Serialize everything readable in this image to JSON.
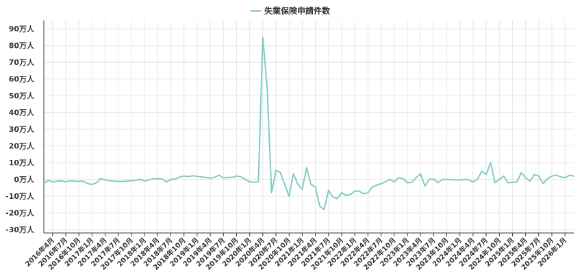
{
  "chart_data": {
    "type": "line",
    "title": "",
    "xlabel": "",
    "ylabel": "",
    "legend_position": "top-center",
    "grid": true,
    "ylim": [
      -32,
      95
    ],
    "y_ticks": [
      {
        "value": 90,
        "label": "90万人"
      },
      {
        "value": 80,
        "label": "80万人"
      },
      {
        "value": 70,
        "label": "70万人"
      },
      {
        "value": 60,
        "label": "60万人"
      },
      {
        "value": 50,
        "label": "50万人"
      },
      {
        "value": 40,
        "label": "40万人"
      },
      {
        "value": 30,
        "label": "30万人"
      },
      {
        "value": 20,
        "label": "20万人"
      },
      {
        "value": 10,
        "label": "10万人"
      },
      {
        "value": 0,
        "label": "0万人"
      },
      {
        "value": -10,
        "label": "-10万人"
      },
      {
        "value": -20,
        "label": "-20万人"
      },
      {
        "value": -30,
        "label": "-30万人"
      }
    ],
    "x_tick_labels": [
      "2016年4月",
      "2016年7月",
      "2016年10月",
      "2017年1月",
      "2017年4月",
      "2017年7月",
      "2017年10月",
      "2018年1月",
      "2018年4月",
      "2018年7月",
      "2018年10月",
      "2019年1月",
      "2019年4月",
      "2019年7月",
      "2019年10月",
      "2020年1月",
      "2020年4月",
      "2020年7月",
      "2020年10月",
      "2021年1月",
      "2021年4月",
      "2021年7月",
      "2021年10月",
      "2022年1月",
      "2022年4月",
      "2022年7月",
      "2022年10月",
      "2023年1月",
      "2023年4月",
      "2023年7月",
      "2023年10月",
      "2024年1月",
      "2024年4月",
      "2024年7月",
      "2024年10月",
      "2025年1月",
      "2025年4月",
      "2025年7月",
      "2025年10月",
      "2026年1月"
    ],
    "x_start": "2016年2月",
    "series": [
      {
        "name": "失業保険申請件数",
        "color": "#7ecdc4",
        "values": [
          -2.5,
          -0.5,
          -1.5,
          -1.0,
          -0.8,
          -1.5,
          -0.8,
          -1.0,
          -1.2,
          -1.0,
          -2.5,
          -3.0,
          -2.0,
          0.5,
          -0.3,
          -0.8,
          -1.0,
          -1.2,
          -1.2,
          -1.0,
          -0.8,
          -0.5,
          0,
          -1.0,
          -0.3,
          0.5,
          0.3,
          0.3,
          -1.5,
          0,
          0.2,
          1.5,
          2.0,
          1.8,
          2.2,
          1.8,
          1.6,
          1.2,
          0.8,
          1.3,
          2.5,
          1.0,
          1.2,
          1.2,
          2.0,
          1.5,
          0,
          -1.5,
          -1.6,
          -1.5,
          85,
          55,
          -8,
          5.5,
          4.2,
          -3,
          -10,
          3.5,
          -3,
          -6,
          7,
          -3,
          -4.5,
          -16,
          -18,
          -6.5,
          -10.5,
          -11.5,
          -8,
          -9.5,
          -9,
          -7,
          -7,
          -8.5,
          -8,
          -4.5,
          -3.5,
          -2.5,
          -1.5,
          0,
          -1.5,
          1,
          0.5,
          -2,
          -1.8,
          1,
          3.5,
          -4,
          0,
          0.2,
          -2,
          0,
          0,
          -0.2,
          -0.3,
          -0.3,
          0,
          -0.3,
          -1.5,
          0,
          5,
          3,
          10,
          -2,
          0,
          2,
          -2,
          -1.8,
          -1.5,
          4,
          1,
          -1,
          3,
          2,
          -2.5,
          0.5,
          2,
          2.5,
          1.5,
          1,
          2.5,
          2
        ]
      }
    ]
  }
}
